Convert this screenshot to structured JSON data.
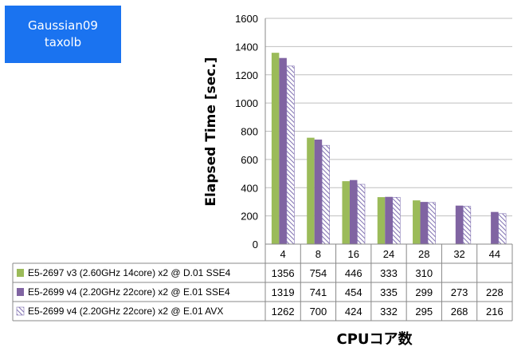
{
  "badge": {
    "line1": "Gaussian09",
    "line2": "taxolb",
    "color": "#1a73f0"
  },
  "chart_data": {
    "type": "bar",
    "title": "",
    "xlabel": "CPUコア数",
    "ylabel": "Elapsed Time [sec.]",
    "ylim": [
      0,
      1600
    ],
    "yticks": [
      0,
      200,
      400,
      600,
      800,
      1000,
      1200,
      1400,
      1600
    ],
    "grid": true,
    "legend": "data-table",
    "categories": [
      "4",
      "8",
      "16",
      "24",
      "28",
      "32",
      "44"
    ],
    "series": [
      {
        "name": "E5-2697 v3 (2.60GHz 14core) x2 @ D.01 SSE4",
        "color": "#9bbb59",
        "pattern": "solid",
        "values": [
          1356,
          754,
          446,
          333,
          310,
          null,
          null
        ]
      },
      {
        "name": "E5-2699 v4 (2.20GHz 22core) x2 @ E.01 SSE4",
        "color": "#8064a2",
        "pattern": "solid",
        "values": [
          1319,
          741,
          454,
          335,
          299,
          273,
          228
        ]
      },
      {
        "name": "E5-2699 v4 (2.20GHz 22core) x2 @ E.01 AVX",
        "color": "#7f6fb0",
        "pattern": "hatch",
        "values": [
          1262,
          700,
          424,
          332,
          295,
          268,
          216
        ]
      }
    ]
  }
}
